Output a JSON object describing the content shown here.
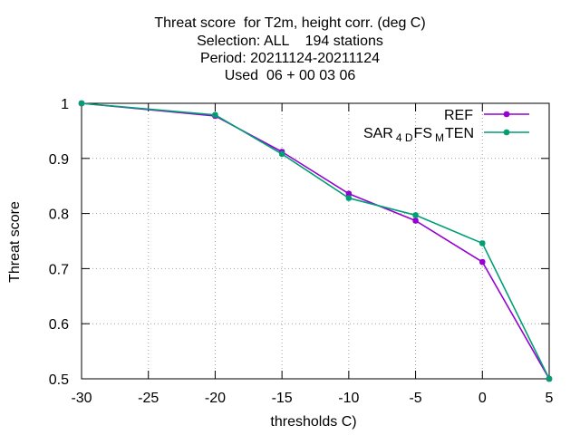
{
  "chart_data": {
    "type": "line",
    "title_lines": [
      "Threat score  for T2m, height corr. (deg C)",
      "Selection: ALL    194 stations",
      "Period: 20211124-20211124",
      "Used  06 + 00 03 06"
    ],
    "xlabel": "thresholds C)",
    "ylabel": "Threat score",
    "xlim": [
      -30,
      5
    ],
    "ylim": [
      0.5,
      1
    ],
    "xticks": [
      -30,
      -25,
      -20,
      -15,
      -10,
      -5,
      0,
      5
    ],
    "yticks": [
      0.5,
      0.6,
      0.7,
      0.8,
      0.9,
      1
    ],
    "ytick_labels": [
      "0.5",
      "0.6",
      "0.7",
      "0.8",
      "0.9",
      "1"
    ],
    "grid": true,
    "legend_position": "top-right",
    "series": [
      {
        "name": "REF",
        "color": "#9400d3",
        "x": [
          -30,
          -20,
          -15,
          -10,
          -5,
          0,
          5
        ],
        "y": [
          1.0,
          0.977,
          0.912,
          0.836,
          0.787,
          0.712,
          0.5
        ]
      },
      {
        "name_parts": [
          {
            "text": "SAR",
            "sub": false
          },
          {
            "text": "4 D",
            "sub": true
          },
          {
            "text": "FS",
            "sub": false
          },
          {
            "text": "M",
            "sub": true
          },
          {
            "text": "TEN",
            "sub": false
          }
        ],
        "color": "#009e73",
        "x": [
          -30,
          -20,
          -15,
          -10,
          -5,
          0,
          5
        ],
        "y": [
          1.0,
          0.979,
          0.908,
          0.828,
          0.797,
          0.746,
          0.5
        ]
      }
    ]
  }
}
